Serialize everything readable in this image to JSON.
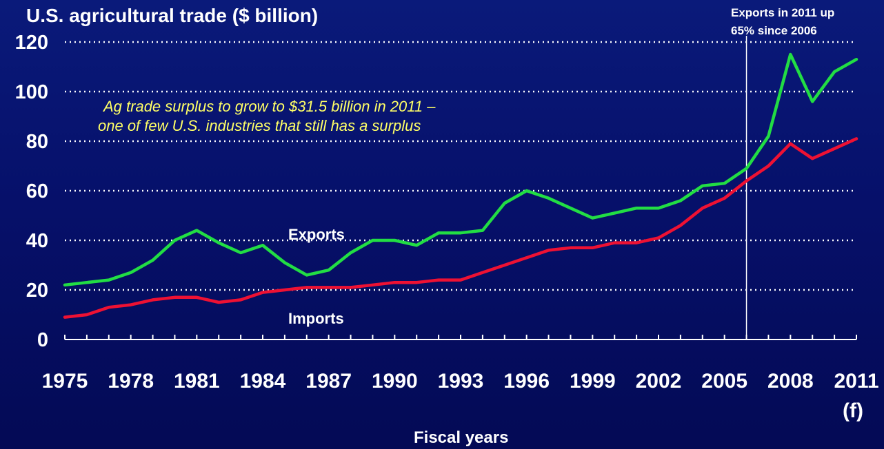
{
  "chart_data": {
    "type": "line",
    "title": "U.S. agricultural trade ($ billion)",
    "xlabel": "Fiscal years",
    "ylabel": "",
    "ylim": [
      0,
      120
    ],
    "yticks": [
      0,
      20,
      40,
      60,
      80,
      100,
      120
    ],
    "xlim": [
      1975,
      2011
    ],
    "xtick_labels": [
      "1975",
      "1978",
      "1981",
      "1984",
      "1987",
      "1990",
      "1993",
      "1996",
      "1999",
      "2002",
      "2005",
      "2008",
      "2011"
    ],
    "forecast_label": "(f)",
    "grid": "horizontal dotted",
    "x": [
      1975,
      1976,
      1977,
      1978,
      1979,
      1980,
      1981,
      1982,
      1983,
      1984,
      1985,
      1986,
      1987,
      1988,
      1989,
      1990,
      1991,
      1992,
      1993,
      1994,
      1995,
      1996,
      1997,
      1998,
      1999,
      2000,
      2001,
      2002,
      2003,
      2004,
      2005,
      2006,
      2007,
      2008,
      2009,
      2010,
      2011
    ],
    "series": [
      {
        "name": "Exports",
        "color": "#22dd44",
        "values": [
          22,
          23,
          24,
          27,
          32,
          40,
          44,
          39,
          35,
          38,
          31,
          26,
          28,
          35,
          40,
          40,
          38,
          43,
          43,
          44,
          55,
          60,
          57,
          53,
          49,
          51,
          53,
          53,
          56,
          62,
          63,
          69,
          82,
          115,
          96,
          108,
          113
        ]
      },
      {
        "name": "Imports",
        "color": "#ee1133",
        "values": [
          9,
          10,
          13,
          14,
          16,
          17,
          17,
          15,
          16,
          19,
          20,
          21,
          21,
          21,
          22,
          23,
          23,
          24,
          24,
          27,
          30,
          33,
          36,
          37,
          37,
          39,
          39,
          41,
          46,
          53,
          57,
          64,
          70,
          79,
          73,
          77,
          81
        ]
      }
    ],
    "annotations": {
      "surplus_line1": "Ag trade surplus to grow to $31.5 billion in 2011 –",
      "surplus_line2": "one of few U.S. industries that still has a surplus",
      "exports_note_line1": "Exports in 2011 up",
      "exports_note_line2": "65% since 2006",
      "marker_year": 2006
    }
  }
}
